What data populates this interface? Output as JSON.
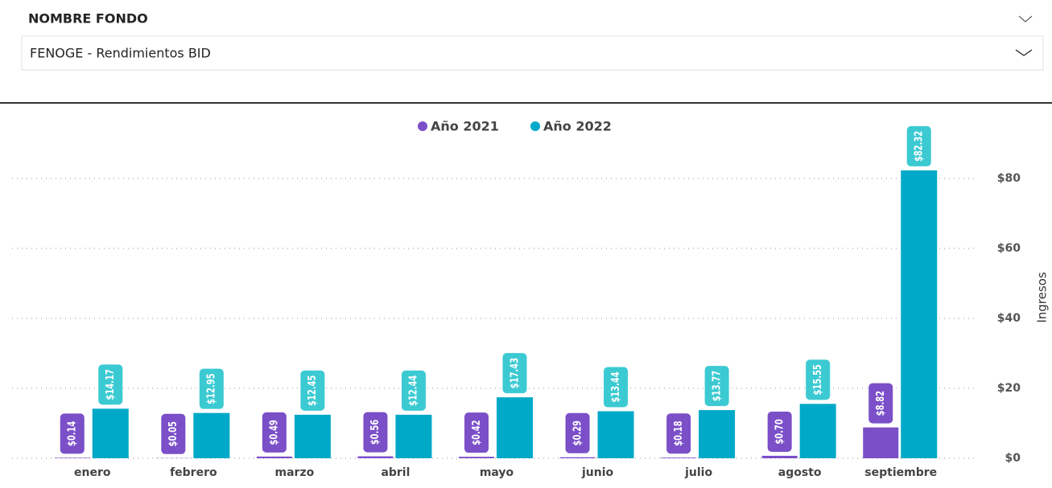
{
  "slicer": {
    "header": "NOMBRE FONDO",
    "selected": "FENOGE - Rendimientos BID"
  },
  "chart_data": {
    "type": "bar",
    "categories": [
      "enero",
      "febrero",
      "marzo",
      "abril",
      "mayo",
      "junio",
      "julio",
      "agosto",
      "septiembre"
    ],
    "series": [
      {
        "name": "Año 2021",
        "color": "#7b4fc8",
        "values": [
          0.14,
          0.05,
          0.49,
          0.56,
          0.42,
          0.29,
          0.18,
          0.7,
          8.82
        ],
        "value_labels": [
          "$0.14",
          "$0.05",
          "$0.49",
          "$0.56",
          "$0.42",
          "$0.29",
          "$0.18",
          "$0.70",
          "$8.82"
        ]
      },
      {
        "name": "Año 2022",
        "color": "#00a9c8",
        "values": [
          14.17,
          12.95,
          12.45,
          12.44,
          17.43,
          13.44,
          13.77,
          15.55,
          82.32
        ],
        "value_labels": [
          "$14.17",
          "$12.95",
          "$12.45",
          "$12.44",
          "$17.43",
          "$13.44",
          "$13.77",
          "$15.55",
          "$82.32"
        ]
      }
    ],
    "y_label": "Ingresos",
    "ylim": [
      0,
      84
    ],
    "yticks": [
      {
        "value": 0,
        "label": "$0"
      },
      {
        "value": 20,
        "label": "$20"
      },
      {
        "value": 40,
        "label": "$40"
      },
      {
        "value": 60,
        "label": "$60"
      },
      {
        "value": 80,
        "label": "$80"
      }
    ],
    "grid": true
  }
}
